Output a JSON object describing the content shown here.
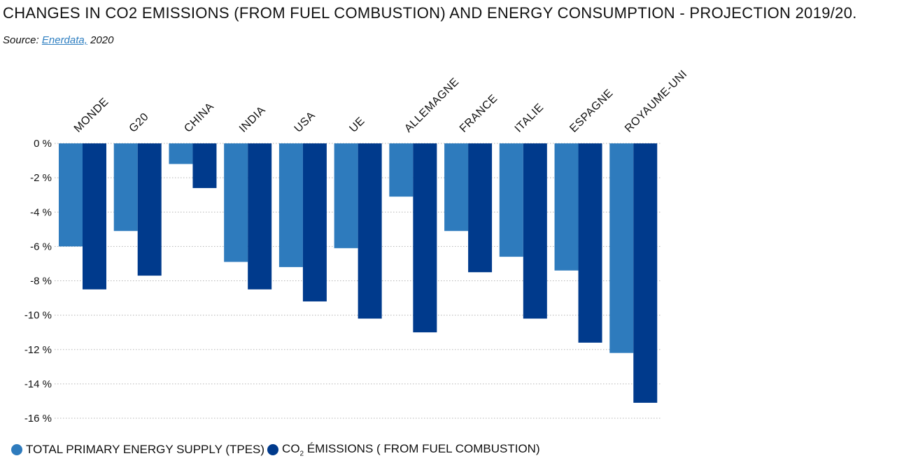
{
  "title": "CHANGES IN CO2 EMISSIONS (FROM FUEL COMBUSTION) AND ENERGY CONSUMPTION - PROJECTION 2019/20.",
  "source": {
    "prefix": "Source: ",
    "link_text": "Enerdata,",
    "suffix": " 2020"
  },
  "legend": [
    {
      "label": "TOTAL PRIMARY ENERGY SUPPLY (TPES)",
      "color": "#2e7bbd"
    },
    {
      "label_prefix": "CO",
      "label_sub": "2",
      "label_suffix": " ÉMISSIONS ( FROM FUEL COMBUSTION)",
      "color": "#003a8c"
    }
  ],
  "chart_data": {
    "type": "bar",
    "categories": [
      "MONDE",
      "G20",
      "CHINA",
      "INDIA",
      "USA",
      "UE",
      "ALLEMAGNE",
      "FRANCE",
      "ITALIE",
      "ESPAGNE",
      "ROYAUME-UNI"
    ],
    "series": [
      {
        "name": "TOTAL PRIMARY ENERGY SUPPLY (TPES)",
        "color": "#2e7bbd",
        "values": [
          -6.0,
          -5.1,
          -1.2,
          -6.9,
          -7.2,
          -6.1,
          -3.1,
          -5.1,
          -6.6,
          -7.4,
          -12.2
        ]
      },
      {
        "name": "CO2 ÉMISSIONS ( FROM FUEL COMBUSTION)",
        "color": "#003a8c",
        "values": [
          -8.5,
          -7.7,
          -2.6,
          -8.5,
          -9.2,
          -10.2,
          -11.0,
          -7.5,
          -10.2,
          -11.6,
          -15.1
        ]
      }
    ],
    "yticks": [
      "0 %",
      "-2 %",
      "-4 %",
      "-6 %",
      "-8 %",
      "-10 %",
      "-12 %",
      "-14 %",
      "-16 %"
    ],
    "ylim": [
      -16,
      0
    ],
    "grid": true,
    "legend_position": "bottom-left"
  }
}
